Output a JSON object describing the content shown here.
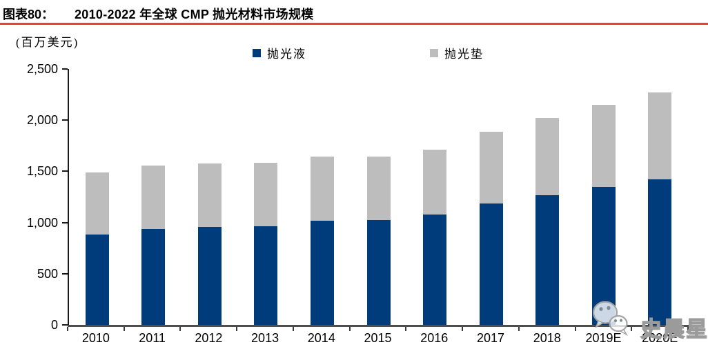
{
  "figure": {
    "label": "图表80：",
    "title": "2010-2022 年全球 CMP 抛光材料市场规模"
  },
  "unit_label": "(百万美元)",
  "colors": {
    "title_rule_red": "#e8432a",
    "slurry_blue": "#003c7c",
    "pad_gray": "#bdbdbd",
    "axis_gray": "#4d4d4d"
  },
  "watermark": {
    "text": "史晨星",
    "icon": "wechat-icon"
  },
  "chart_data": {
    "type": "bar",
    "stacked": true,
    "title": "2010-2022 年全球 CMP 抛光材料市场规模",
    "ylabel": "(百万美元)",
    "xlabel": "",
    "grid": false,
    "legend_position": "top",
    "ylim": [
      0,
      2500
    ],
    "yticks": [
      0,
      500,
      1000,
      1500,
      2000,
      2500
    ],
    "ytick_labels": [
      "0",
      "500",
      "1,000",
      "1,500",
      "2,000",
      "2,500"
    ],
    "categories": [
      "2010",
      "2011",
      "2012",
      "2013",
      "2014",
      "2015",
      "2016",
      "2017",
      "2018",
      "2019E",
      "2020E"
    ],
    "series": [
      {
        "key": "slurry",
        "name": "抛光液",
        "color": "#003c7c",
        "values": [
          880,
          935,
          960,
          965,
          1015,
          1025,
          1075,
          1185,
          1270,
          1350,
          1425
        ]
      },
      {
        "key": "pad",
        "name": "抛光垫",
        "color": "#bdbdbd",
        "values": [
          610,
          620,
          615,
          620,
          630,
          620,
          635,
          700,
          755,
          800,
          845
        ]
      }
    ],
    "totals": [
      1490,
      1555,
      1575,
      1585,
      1645,
      1645,
      1710,
      1885,
      2025,
      2150,
      2270
    ]
  }
}
